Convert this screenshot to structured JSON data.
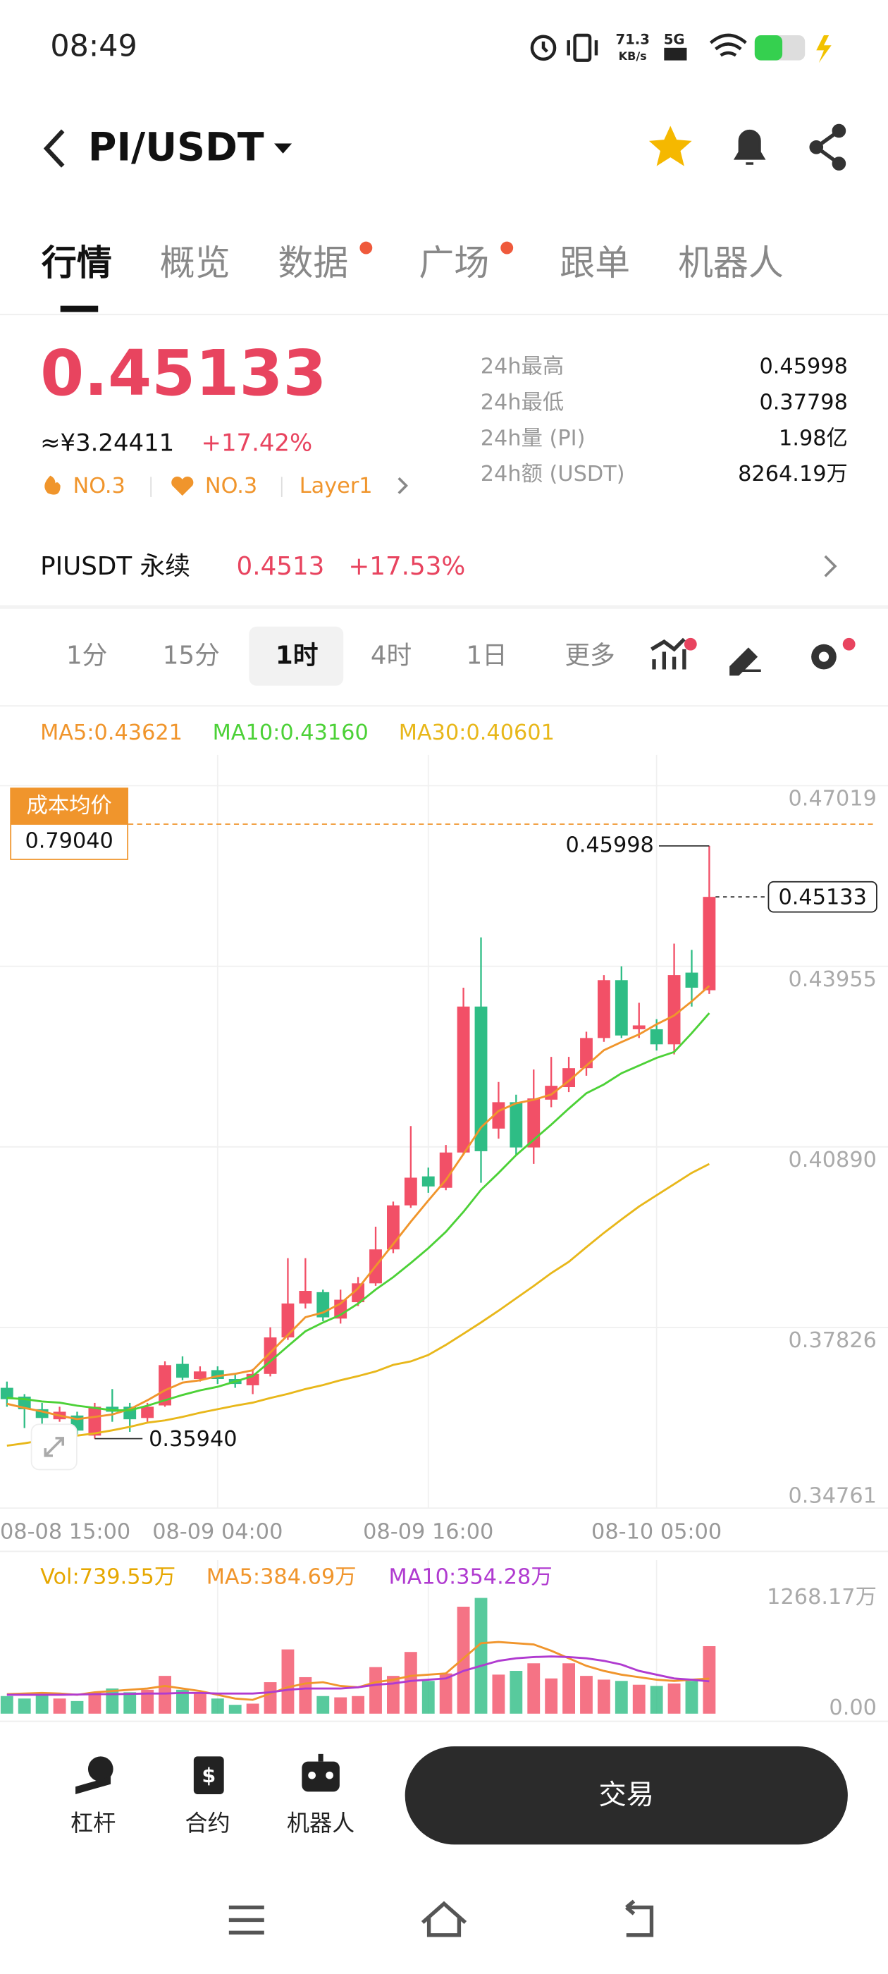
{
  "status_bar": {
    "time": "08:49",
    "net_speed": "71.3",
    "net_unit": "KB/s",
    "network": "5G"
  },
  "header": {
    "pair": "PI/USDT"
  },
  "tabs": [
    "行情",
    "概览",
    "数据",
    "广场",
    "跟单",
    "机器人"
  ],
  "price": {
    "last": "0.45133",
    "cny": "≈¥3.24411",
    "change": "+17.42%",
    "tags": [
      "NO.3",
      "NO.3",
      "Layer1"
    ]
  },
  "stats": [
    {
      "label": "24h最高",
      "value": "0.45998"
    },
    {
      "label": "24h最低",
      "value": "0.37798"
    },
    {
      "label": "24h量 (PI)",
      "value": "1.98亿"
    },
    {
      "label": "24h额 (USDT)",
      "value": "8264.19万"
    }
  ],
  "perpetual": {
    "name": "PIUSDT 永续",
    "price": "0.4513",
    "change": "+17.53%"
  },
  "intervals": [
    "1分",
    "15分",
    "1时",
    "4时",
    "1日",
    "更多"
  ],
  "chart_data": [
    {
      "type": "candlestick",
      "categories": [
        "08-08 15:00",
        null,
        null,
        null,
        null,
        null,
        null,
        null,
        null,
        null,
        null,
        null,
        "08-09 04:00",
        null,
        null,
        null,
        null,
        null,
        null,
        null,
        null,
        null,
        null,
        null,
        "08-09 16:00",
        null,
        null,
        null,
        null,
        null,
        null,
        null,
        null,
        null,
        null,
        null,
        null,
        "08-10 05:00",
        null,
        null,
        null
      ],
      "open": [
        0.36802,
        0.36652,
        0.36439,
        0.36268,
        0.36332,
        0.35991,
        0.36481,
        0.36481,
        0.3629,
        0.36503,
        0.37208,
        0.36952,
        0.37102,
        0.36952,
        0.36845,
        0.37038,
        0.37657,
        0.38233,
        0.38425,
        0.37977,
        0.38255,
        0.38575,
        0.39151,
        0.39898,
        0.4039,
        0.40197,
        0.40795,
        0.43272,
        0.41201,
        0.41649,
        0.40881,
        0.41692,
        0.41905,
        0.42226,
        0.42738,
        0.4372,
        0.42887,
        0.42887,
        0.42631,
        0.43848,
        0.43549
      ],
      "high": [
        0.36908,
        0.36695,
        0.36546,
        0.36481,
        0.36396,
        0.36546,
        0.36781,
        0.36546,
        0.36546,
        0.37251,
        0.37336,
        0.37166,
        0.37166,
        0.37038,
        0.37123,
        0.37828,
        0.39002,
        0.39002,
        0.38468,
        0.38468,
        0.38682,
        0.39536,
        0.39963,
        0.41244,
        0.40539,
        0.40923,
        0.43592,
        0.44446,
        0.41991,
        0.41777,
        0.42204,
        0.42418,
        0.42418,
        0.42845,
        0.43806,
        0.43955,
        0.43336,
        0.43058,
        0.44339,
        0.44233,
        0.45998
      ],
      "low": [
        0.36481,
        0.36119,
        0.36161,
        0.36226,
        0.36012,
        0.3594,
        0.36226,
        0.36055,
        0.36226,
        0.36481,
        0.36931,
        0.36908,
        0.36867,
        0.36802,
        0.36695,
        0.36995,
        0.37614,
        0.38148,
        0.37934,
        0.37892,
        0.3819,
        0.38532,
        0.39087,
        0.39856,
        0.40112,
        0.40155,
        0.40752,
        0.40283,
        0.4103,
        0.40752,
        0.40603,
        0.41564,
        0.4182,
        0.42098,
        0.42674,
        0.42738,
        0.42738,
        0.42525,
        0.4246,
        0.43272,
        0.43485
      ],
      "close": [
        0.3661,
        0.36439,
        0.3629,
        0.36396,
        0.36076,
        0.36481,
        0.36396,
        0.36268,
        0.36481,
        0.37187,
        0.36973,
        0.3708,
        0.36952,
        0.36867,
        0.37038,
        0.37657,
        0.38233,
        0.38447,
        0.37998,
        0.38297,
        0.38575,
        0.39151,
        0.39898,
        0.40368,
        0.40219,
        0.40795,
        0.43272,
        0.40817,
        0.41649,
        0.40881,
        0.41713,
        0.41927,
        0.42226,
        0.42738,
        0.4372,
        0.42781,
        0.42952,
        0.42631,
        0.43806,
        0.43592,
        0.45133
      ],
      "up_color": "#f25067",
      "down_color": "#2ebd85",
      "lines": [
        {
          "name": "MA5:0.43621",
          "color": "#f0952c",
          "values": [
            0.3653,
            0.3646,
            0.364,
            0.3633,
            0.3627,
            0.3631,
            0.3635,
            0.3644,
            0.3659,
            0.3676,
            0.3689,
            0.3693,
            0.37,
            0.3704,
            0.371,
            0.374,
            0.377,
            0.38,
            0.3808,
            0.3823,
            0.3849,
            0.3887,
            0.3924,
            0.3962,
            0.3998,
            0.4033,
            0.4077,
            0.4122,
            0.415,
            0.4163,
            0.4169,
            0.4178,
            0.4201,
            0.4227,
            0.4253,
            0.4267,
            0.428,
            0.4297,
            0.4312,
            0.4336,
            0.43621
          ]
        },
        {
          "name": "MA10:0.43160",
          "color": "#4cd137",
          "values": [
            0.3663,
            0.3661,
            0.3657,
            0.3655,
            0.365,
            0.3646,
            0.3642,
            0.3642,
            0.365,
            0.3659,
            0.3668,
            0.3676,
            0.3682,
            0.3691,
            0.37,
            0.3725,
            0.3751,
            0.3776,
            0.3791,
            0.3804,
            0.3823,
            0.3847,
            0.3868,
            0.3892,
            0.3917,
            0.3945,
            0.3979,
            0.4016,
            0.4045,
            0.4075,
            0.4101,
            0.4127,
            0.4154,
            0.418,
            0.4195,
            0.4214,
            0.4227,
            0.424,
            0.425,
            0.4282,
            0.4316
          ]
        },
        {
          "name": "MA30:0.40601",
          "color": "#e8b71a",
          "values": [
            0.3582,
            0.3586,
            0.3591,
            0.3595,
            0.3599,
            0.3603,
            0.3608,
            0.3614,
            0.3621,
            0.3625,
            0.3631,
            0.3638,
            0.3644,
            0.365,
            0.3655,
            0.3663,
            0.367,
            0.3678,
            0.3685,
            0.3693,
            0.37,
            0.3708,
            0.3719,
            0.3725,
            0.3736,
            0.3753,
            0.3772,
            0.3791,
            0.3811,
            0.3832,
            0.3853,
            0.3875,
            0.3894,
            0.3919,
            0.3943,
            0.3966,
            0.3988,
            0.4007,
            0.4026,
            0.4045,
            0.40601
          ]
        }
      ],
      "ylim": [
        0.34761,
        0.47542
      ],
      "yticks": [
        0.47019,
        0.43955,
        {
          "value": 0.4089,
          "label": "0.40890"
        },
        0.37826,
        0.34761
      ],
      "grid": true,
      "cost": {
        "label": "成本均价",
        "value": "0.79040"
      },
      "labels": {
        "high": "0.45998",
        "low": "0.35940"
      }
    },
    {
      "type": "bar",
      "series": [
        {
          "name": "Vol:739.55万",
          "values": [
            193,
            166,
            207,
            166,
            138,
            235,
            276,
            235,
            262,
            414,
            262,
            235,
            166,
            97,
            110,
            345,
            704,
            400,
            193,
            179,
            193,
            510,
            414,
            676,
            359,
            441,
            1172,
            1268.17,
            428,
            469,
            552,
            386,
            552,
            414,
            373,
            359,
            317,
            304,
            331,
            359,
            739.55
          ]
        }
      ],
      "lines": [
        {
          "name": "MA5:384.69万",
          "color": "#f0952c",
          "values": [
            214,
            221,
            227,
            220,
            207,
            234,
            248,
            262,
            276,
            303,
            276,
            248,
            207,
            165,
            152,
            220,
            290,
            331,
            345,
            303,
            290,
            345,
            372,
            414,
            427,
            441,
            607,
            772,
            786,
            772,
            758,
            689,
            607,
            524,
            469,
            427,
            400,
            372,
            358,
            372,
            384.69
          ]
        },
        {
          "name": "MA10:354.28万",
          "color": "#b03bd0",
          "values": [
            207,
            207,
            207,
            207,
            210,
            214,
            214,
            217,
            221,
            221,
            228,
            228,
            221,
            221,
            221,
            234,
            262,
            276,
            276,
            276,
            290,
            317,
            331,
            358,
            372,
            386,
            469,
            524,
            579,
            607,
            620,
            627,
            620,
            607,
            579,
            538,
            469,
            427,
            386,
            372,
            354.28
          ]
        }
      ],
      "legend_color": "#e6a700",
      "ylim": [
        0,
        1268.17
      ],
      "yticks": [
        {
          "value": 1268.17,
          "label": "1268.17万"
        },
        {
          "value": 0,
          "label": "0.00"
        }
      ]
    }
  ],
  "bottom_bar": {
    "actions": [
      "杠杆",
      "合约",
      "机器人"
    ],
    "trade": "交易"
  }
}
